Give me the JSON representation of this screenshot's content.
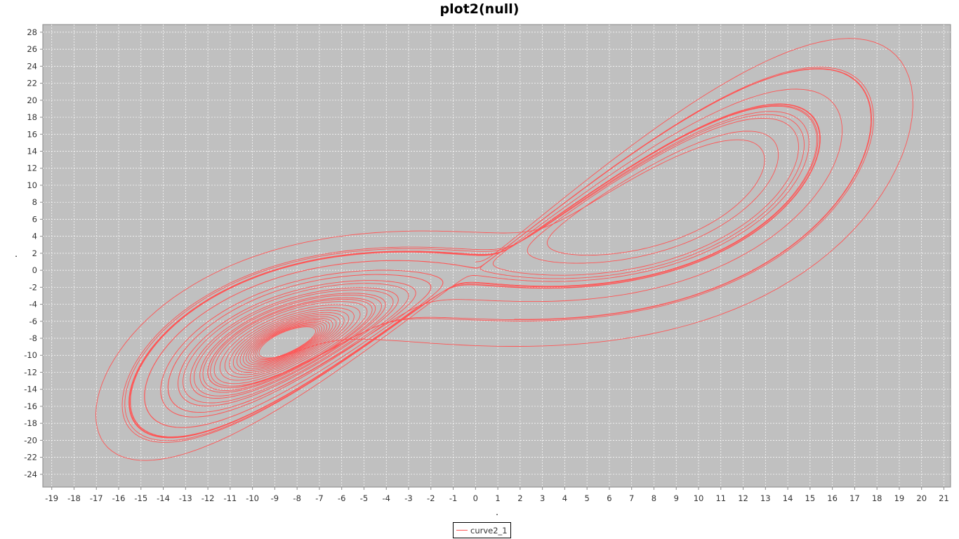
{
  "chart_data": {
    "type": "line",
    "title": "plot2(null)",
    "xlabel": ".",
    "ylabel": ".",
    "xlim": [
      -19.4,
      21.3
    ],
    "ylim": [
      -25.5,
      28.9
    ],
    "x_ticks": [
      -19,
      -18,
      -17,
      -16,
      -15,
      -14,
      -13,
      -12,
      -11,
      -10,
      -9,
      -8,
      -7,
      -6,
      -5,
      -4,
      -3,
      -2,
      -1,
      0,
      1,
      2,
      3,
      4,
      5,
      6,
      7,
      8,
      9,
      10,
      11,
      12,
      13,
      14,
      15,
      16,
      17,
      18,
      19,
      20,
      21
    ],
    "y_ticks": [
      28,
      26,
      24,
      22,
      20,
      18,
      16,
      14,
      12,
      10,
      8,
      6,
      4,
      2,
      0,
      -2,
      -4,
      -6,
      -8,
      -10,
      -12,
      -14,
      -16,
      -18,
      -20,
      -22,
      -24
    ],
    "grid": true,
    "background": "#c0c0c0",
    "legend_position": "bottom-center",
    "series": [
      {
        "name": "curve2_1",
        "color": "#ff5555",
        "description_points": {
          "start": [
            0,
            1
          ],
          "left_lobe_center": [
            -8.5,
            -8.5
          ],
          "right_lobe_center": [
            8.5,
            8.5
          ],
          "extreme_top": [
            16.8,
            27.1
          ],
          "extreme_right": [
            19.6,
            20
          ],
          "extreme_left": [
            -17.3,
            -18
          ],
          "extreme_bottom": [
            -15,
            -23.2
          ]
        }
      }
    ]
  }
}
